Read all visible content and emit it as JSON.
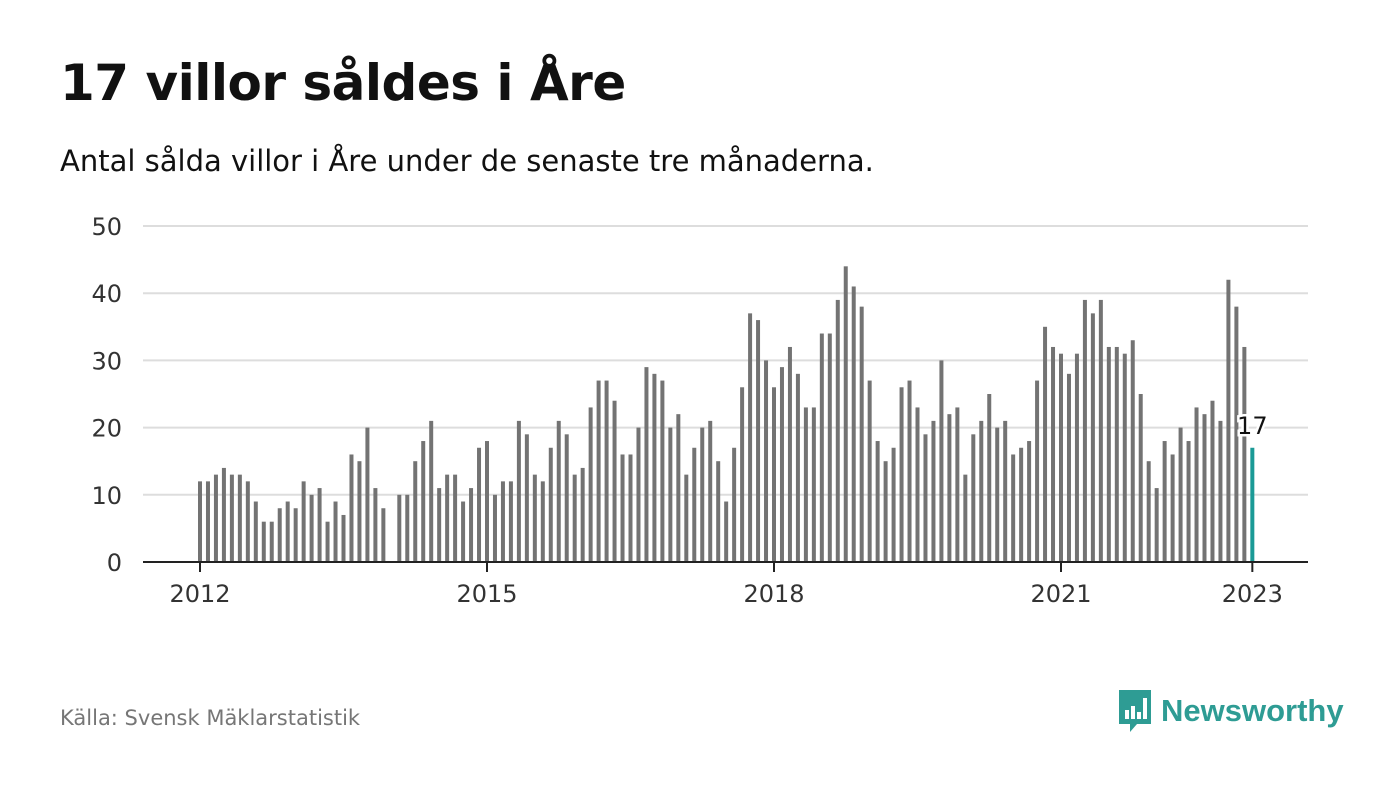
{
  "title": "17 villor såldes i Åre",
  "subtitle": "Antal sålda villor i Åre under de senaste tre månaderna.",
  "source": "Källa: Svensk Mäklarstatistik",
  "brand": {
    "name": "Newsworthy",
    "color": "#2e9c94",
    "icon": "bar-chart-logo-icon"
  },
  "colors": {
    "bar": "#737373",
    "highlight": "#1b9a96",
    "grid": "#dddddd",
    "axis": "#222222"
  },
  "chart_data": {
    "type": "bar",
    "title": "17 villor såldes i Åre",
    "subtitle": "Antal sålda villor i Åre under de senaste tre månaderna.",
    "xlabel": "",
    "ylabel": "",
    "ylim": [
      0,
      50
    ],
    "yticks": [
      "0",
      "10",
      "20",
      "30",
      "40",
      "50"
    ],
    "grid": true,
    "start": "2012-01",
    "xticks": [
      {
        "label": "2012",
        "month": "2012-01"
      },
      {
        "label": "2015",
        "month": "2015-01"
      },
      {
        "label": "2018",
        "month": "2018-01"
      },
      {
        "label": "2021",
        "month": "2021-01"
      },
      {
        "label": "2023",
        "month": "2023-01"
      }
    ],
    "values": [
      12,
      12,
      13,
      14,
      13,
      13,
      12,
      9,
      6,
      6,
      8,
      9,
      8,
      12,
      10,
      11,
      6,
      9,
      7,
      16,
      15,
      20,
      11,
      8,
      null,
      10,
      10,
      15,
      18,
      21,
      11,
      13,
      13,
      9,
      11,
      17,
      18,
      10,
      12,
      12,
      21,
      19,
      13,
      12,
      17,
      21,
      19,
      13,
      14,
      23,
      27,
      27,
      24,
      16,
      16,
      20,
      29,
      28,
      27,
      20,
      22,
      13,
      17,
      20,
      21,
      15,
      9,
      17,
      26,
      37,
      36,
      30,
      26,
      29,
      32,
      28,
      23,
      23,
      34,
      34,
      39,
      44,
      41,
      38,
      27,
      18,
      15,
      17,
      26,
      27,
      23,
      19,
      21,
      30,
      22,
      23,
      13,
      19,
      21,
      25,
      20,
      21,
      16,
      17,
      18,
      27,
      35,
      32,
      31,
      28,
      31,
      39,
      37,
      39,
      32,
      32,
      31,
      33,
      25,
      15,
      11,
      18,
      16,
      20,
      18,
      23,
      22,
      24,
      21,
      42,
      38,
      32,
      17
    ],
    "highlight": {
      "month": "2023-01",
      "value": 17,
      "label": "17"
    }
  }
}
